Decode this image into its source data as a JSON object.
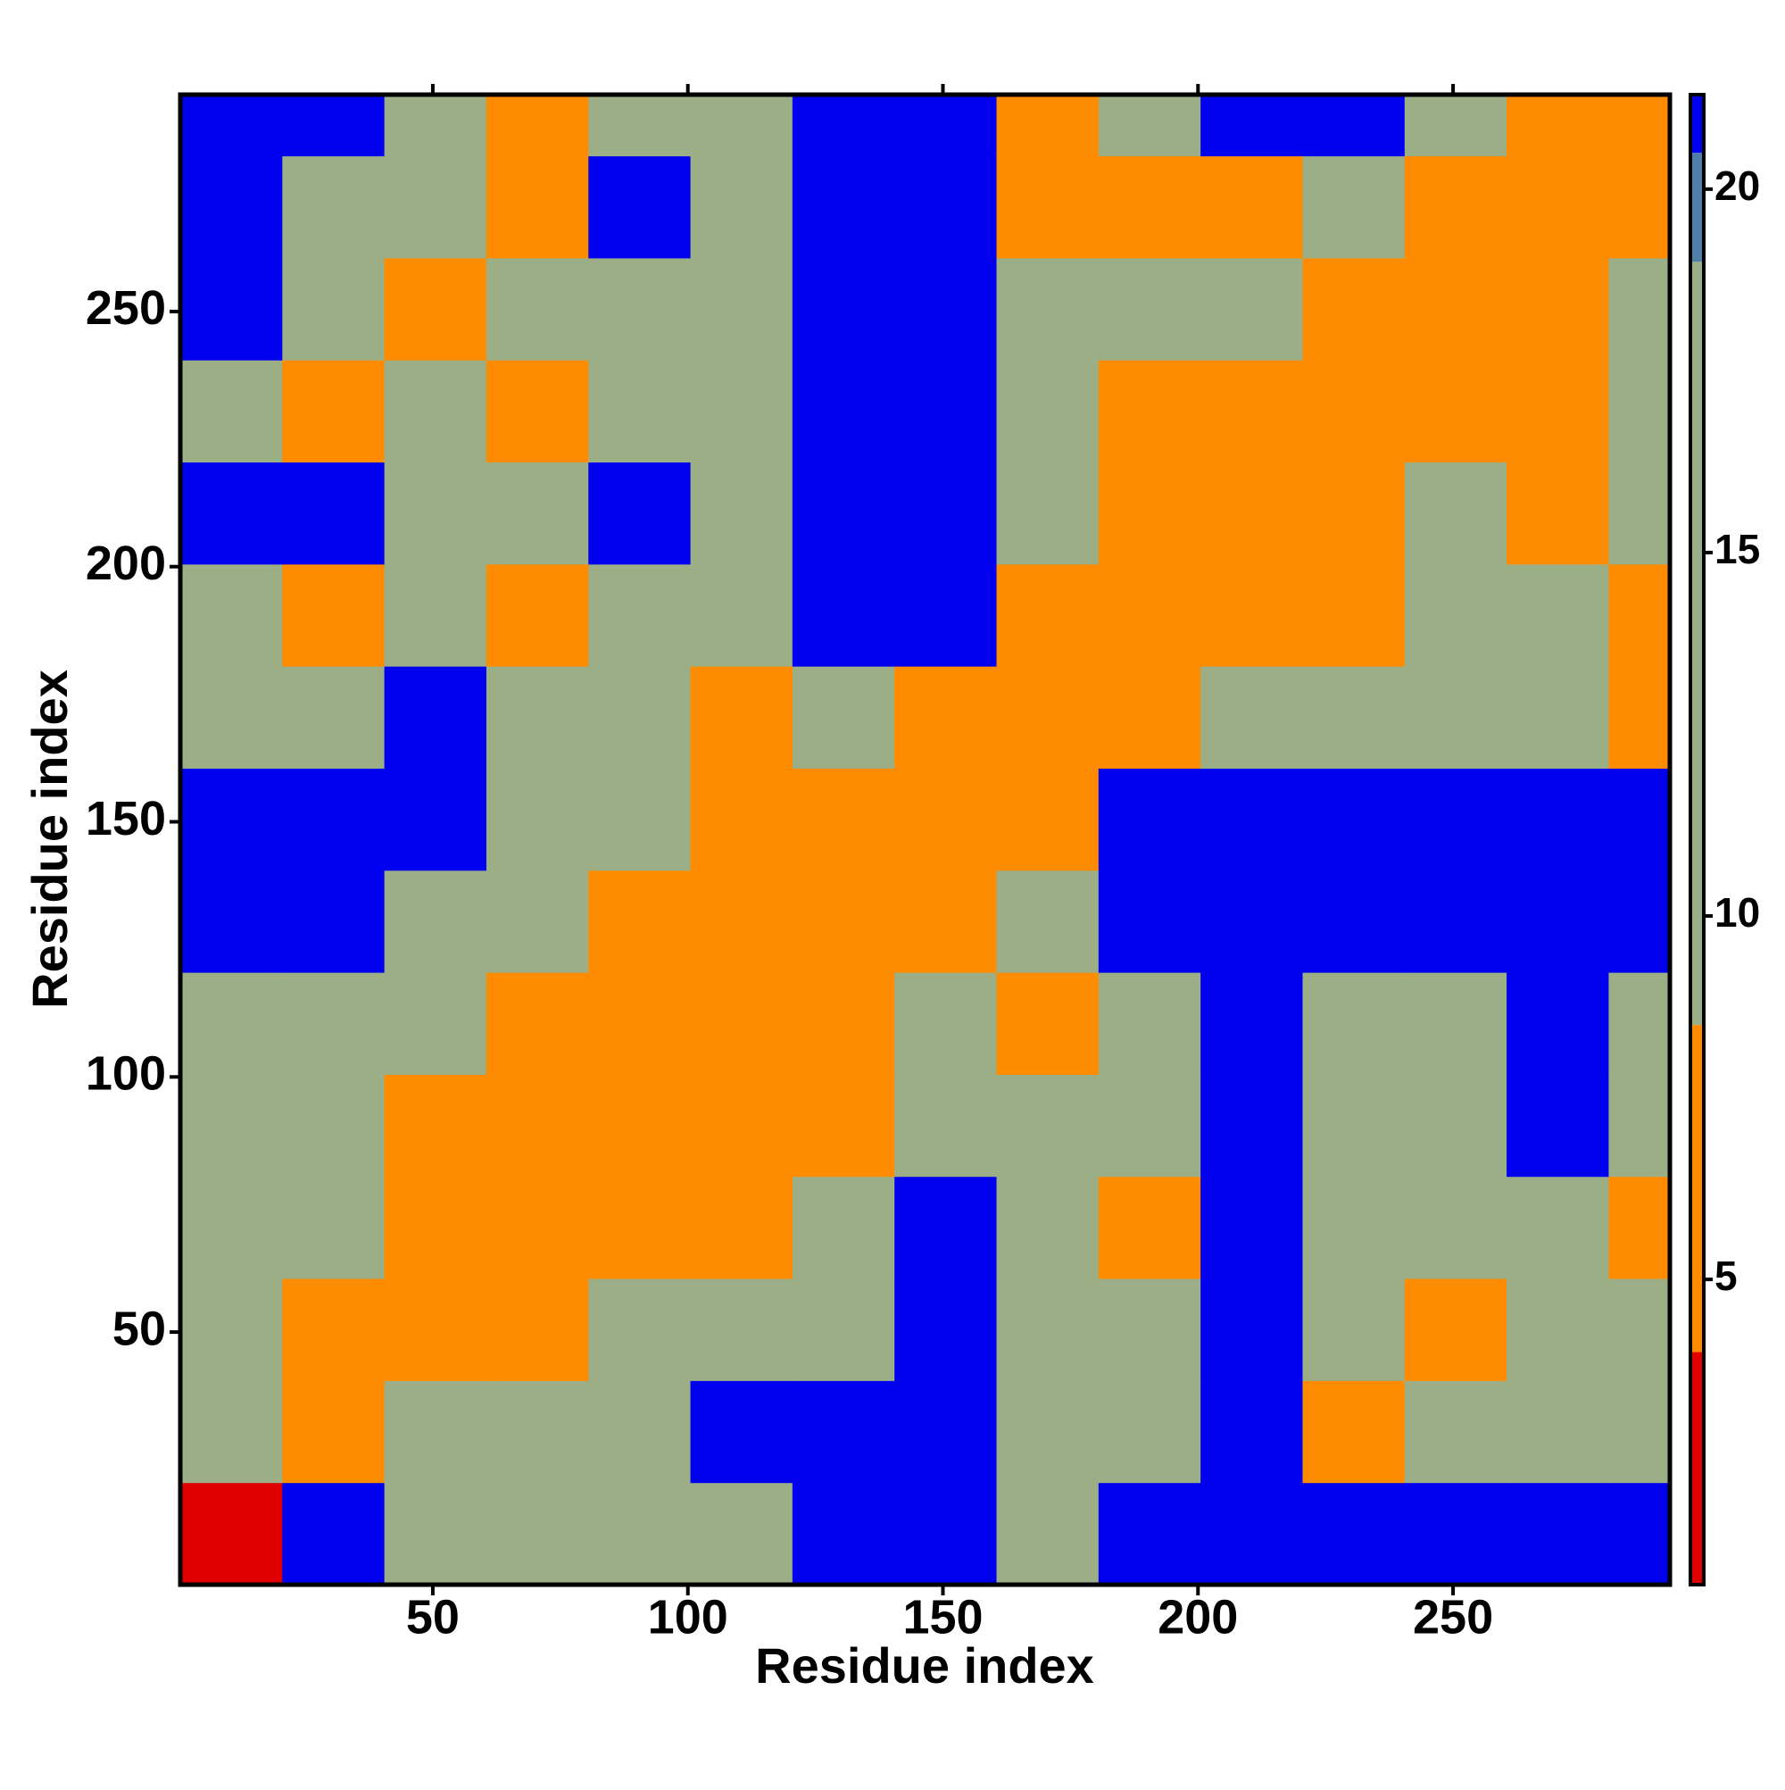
{
  "chart_data": {
    "type": "heatmap",
    "xlabel": "Residue index",
    "ylabel": "Residue index",
    "x_bins": [
      0.5,
      20.5,
      40.5,
      60.5,
      80.5,
      100.5,
      120.5,
      140.5,
      160.5,
      180.5,
      200.5,
      220.5,
      240.5,
      260.5,
      280.5,
      292.5
    ],
    "y_bins": [
      0.5,
      20.5,
      40.5,
      60.5,
      80.5,
      100.5,
      120.5,
      140.5,
      160.5,
      180.5,
      200.5,
      220.5,
      240.5,
      260.5,
      280.5,
      292.5
    ],
    "z": [
      [
        3,
        22,
        15,
        15,
        13,
        12,
        22,
        22,
        16,
        22,
        22,
        22,
        22,
        22,
        22
      ],
      [
        14,
        4,
        9,
        11,
        16,
        22,
        22,
        22,
        9,
        10,
        22,
        8,
        11,
        14,
        16
      ],
      [
        13,
        8,
        4,
        7,
        10,
        9,
        12,
        22,
        16,
        12,
        22,
        9,
        8,
        12,
        13
      ],
      [
        16,
        10,
        7,
        4,
        7,
        8,
        11,
        22,
        10,
        8,
        22,
        9,
        9,
        12,
        8
      ],
      [
        14,
        10,
        8,
        7,
        4,
        6,
        8,
        10,
        11,
        14,
        22,
        13,
        13,
        22,
        14
      ],
      [
        11,
        16,
        9,
        8,
        5,
        4,
        6,
        11,
        8,
        11,
        22,
        11,
        12,
        22,
        11
      ],
      [
        22,
        22,
        12,
        10,
        7,
        6,
        4,
        7,
        10,
        22,
        22,
        22,
        22,
        22,
        22
      ],
      [
        22,
        22,
        22,
        13,
        12,
        8,
        6,
        4,
        7,
        22,
        22,
        22,
        22,
        22,
        22
      ],
      [
        12,
        12,
        22,
        11,
        11,
        7,
        12,
        6,
        4,
        5,
        12,
        11,
        12,
        12,
        7
      ],
      [
        12,
        8,
        14,
        8,
        12,
        10,
        22,
        22,
        5,
        4,
        6,
        7,
        10,
        11,
        7
      ],
      [
        22,
        22,
        18,
        18,
        22,
        18,
        22,
        22,
        16,
        6,
        4,
        6,
        10,
        7,
        11
      ],
      [
        16,
        8,
        10,
        8,
        16,
        11,
        22,
        22,
        10,
        7,
        6,
        4,
        6,
        8,
        11
      ],
      [
        22,
        10,
        7,
        10,
        13,
        12,
        22,
        22,
        10,
        9,
        11,
        6,
        4,
        5,
        11
      ],
      [
        22,
        10,
        9,
        7,
        22,
        10,
        22,
        22,
        7,
        8,
        8,
        11,
        6,
        4,
        7
      ],
      [
        22,
        22,
        12,
        7,
        12,
        11,
        22,
        22,
        6,
        11,
        22,
        22,
        12,
        6,
        4
      ]
    ],
    "xlim": [
      0.5,
      292.5
    ],
    "ylim": [
      0.5,
      292.5
    ],
    "xticks": [
      50,
      100,
      150,
      200,
      250
    ],
    "yticks": [
      50,
      100,
      150,
      200,
      250
    ],
    "clim": [
      0.8,
      21.3
    ],
    "cticks": [
      5,
      10,
      15,
      20
    ],
    "colorscale": [
      [
        0.8,
        "#e00000"
      ],
      [
        4,
        "#ff8c00"
      ],
      [
        8.5,
        "#9cae86"
      ],
      [
        19,
        "#4f7fa8"
      ],
      [
        20.5,
        "#0000ee"
      ]
    ]
  }
}
